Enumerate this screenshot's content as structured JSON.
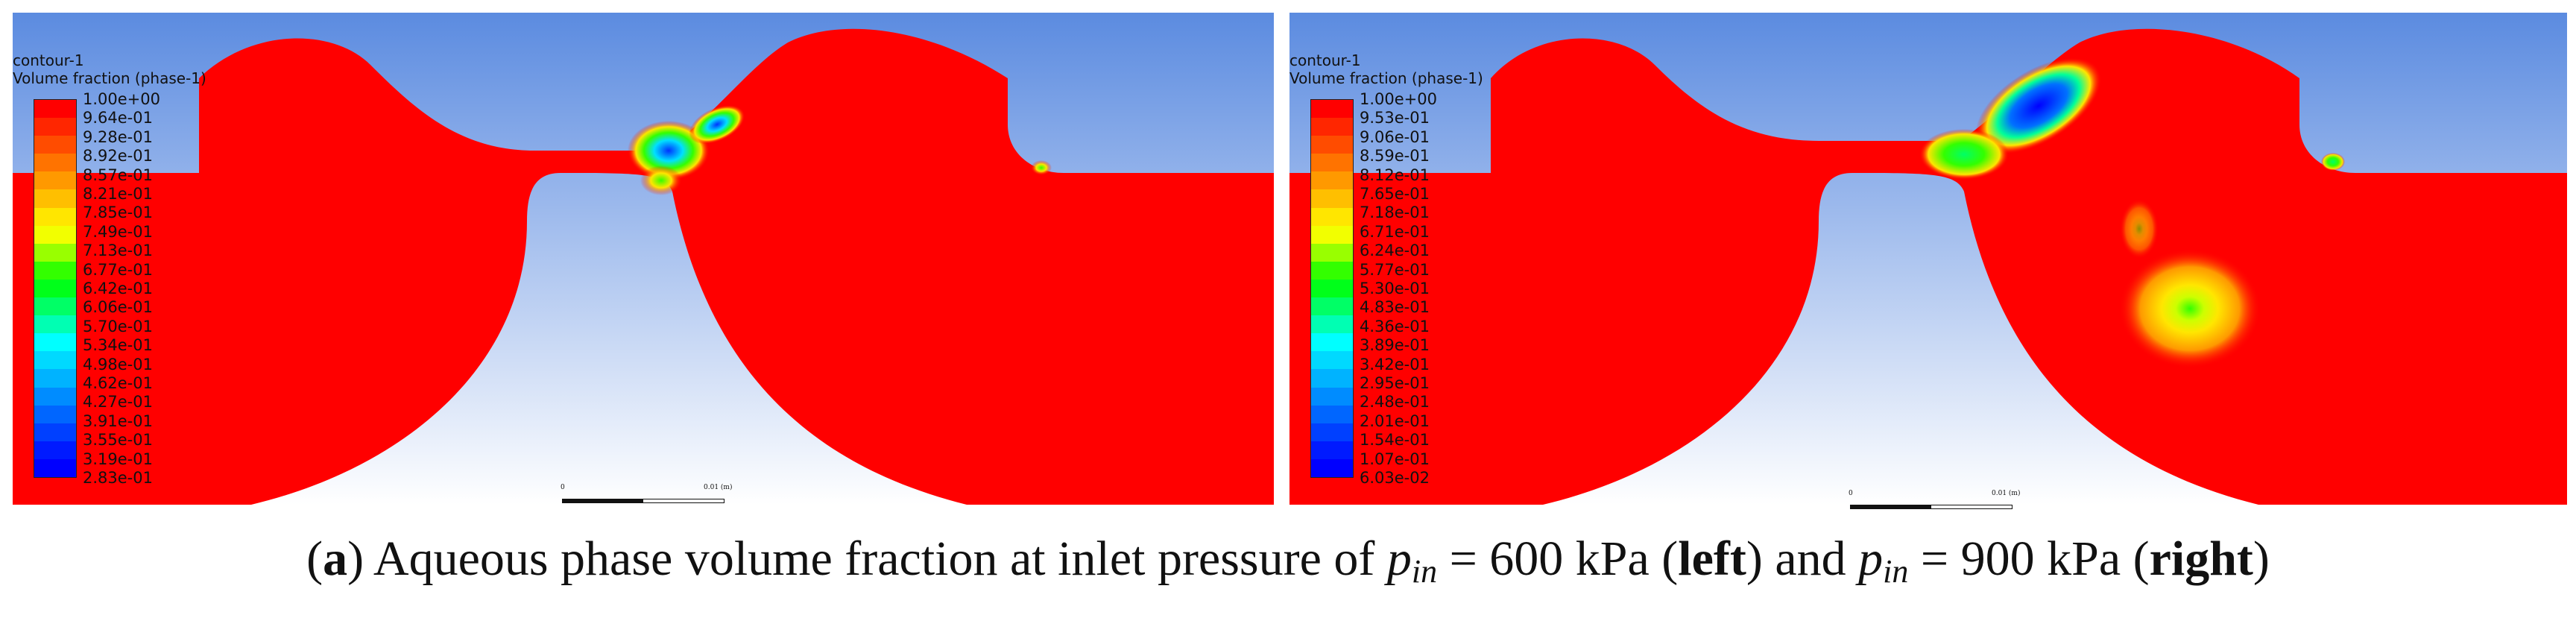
{
  "panels": [
    {
      "contour_title": "contour-1",
      "contour_subtitle": "Volume fraction (phase-1)",
      "legend_labels": [
        "1.00e+00",
        "9.64e-01",
        "9.28e-01",
        "8.92e-01",
        "8.57e-01",
        "8.21e-01",
        "7.85e-01",
        "7.49e-01",
        "7.13e-01",
        "6.77e-01",
        "6.42e-01",
        "6.06e-01",
        "5.70e-01",
        "5.34e-01",
        "4.98e-01",
        "4.62e-01",
        "4.27e-01",
        "3.91e-01",
        "3.55e-01",
        "3.19e-01",
        "2.83e-01"
      ],
      "scale_start": "0",
      "scale_end": "0.01 (m)"
    },
    {
      "contour_title": "contour-1",
      "contour_subtitle": "Volume fraction (phase-1)",
      "legend_labels": [
        "1.00e+00",
        "9.53e-01",
        "9.06e-01",
        "8.59e-01",
        "8.12e-01",
        "7.65e-01",
        "7.18e-01",
        "6.71e-01",
        "6.24e-01",
        "5.77e-01",
        "5.30e-01",
        "4.83e-01",
        "4.36e-01",
        "3.89e-01",
        "3.42e-01",
        "2.95e-01",
        "2.48e-01",
        "2.01e-01",
        "1.54e-01",
        "1.07e-01",
        "6.03e-02"
      ],
      "scale_start": "0",
      "scale_end": "0.01 (m)"
    }
  ],
  "legend_colors": [
    "#ff0000",
    "#ff2600",
    "#ff4c00",
    "#ff7300",
    "#ff9900",
    "#ffbf00",
    "#ffe600",
    "#f2ff00",
    "#99ff00",
    "#33ff00",
    "#00ff1a",
    "#00ff66",
    "#00ffb3",
    "#00ffff",
    "#00d9ff",
    "#00b3ff",
    "#008cff",
    "#0066ff",
    "#0040ff",
    "#001aff",
    "#0000ff"
  ],
  "caption": {
    "open": "(",
    "letter": "a",
    "part1": ") Aqueous phase volume fraction at inlet pressure of ",
    "p_symbol": "p",
    "p_sub": "in",
    "part2": " = 600 kPa (",
    "left_word": "left",
    "part3": ") and ",
    "part4": " = 900 kPa (",
    "right_word": "right",
    "close": ")"
  },
  "colors": {
    "sky_top": "#5b8be0",
    "sky_bottom": "#ffffff",
    "fluid": "#ff0000"
  }
}
